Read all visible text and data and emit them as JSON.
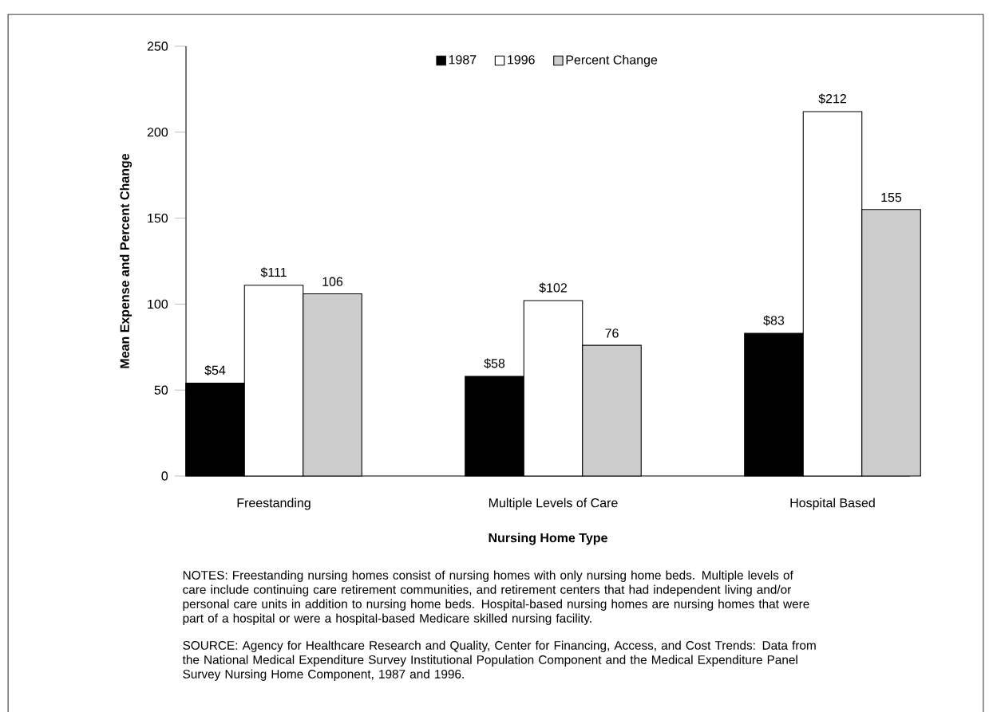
{
  "chart_data": {
    "type": "bar",
    "xlabel": "Nursing Home Type",
    "ylabel": "Mean Expense and Percent Change",
    "categories": [
      "Freestanding",
      "Multiple Levels of Care",
      "Hospital Based"
    ],
    "series": [
      {
        "name": "1987",
        "color": "#000000",
        "values": [
          54,
          58,
          83
        ],
        "value_labels": [
          "$54",
          "$58",
          "$83"
        ]
      },
      {
        "name": "1996",
        "color": "#ffffff",
        "values": [
          111,
          102,
          212
        ],
        "value_labels": [
          "$111",
          "$102",
          "$212"
        ]
      },
      {
        "name": "Percent Change",
        "color": "#cccccc",
        "values": [
          106,
          76,
          155
        ],
        "value_labels": [
          "106",
          "76",
          "155"
        ]
      }
    ],
    "ylim": [
      0,
      250
    ],
    "yticks": [
      0,
      50,
      100,
      150,
      200,
      250
    ],
    "legend": "top",
    "annotations": [
      "NOTES: Freestanding nursing homes consist of nursing homes with only nursing home beds. Multiple levels of care include continuing care retirement communities, and retirement centers that had independent living and/or personal care units in addition to nursing home beds. Hospital-based nursing homes are nursing homes that were part of a hospital or were a hospital-based Medicare skilled nursing facility.",
      "SOURCE: Agency for Healthcare Research and Quality, Center for Financing, Access, and Cost Trends: Data from the National Medical Expenditure Survey Institutional Population Component and the Medical Expenditure Panel Survey Nursing Home Component, 1987 and 1996."
    ]
  }
}
